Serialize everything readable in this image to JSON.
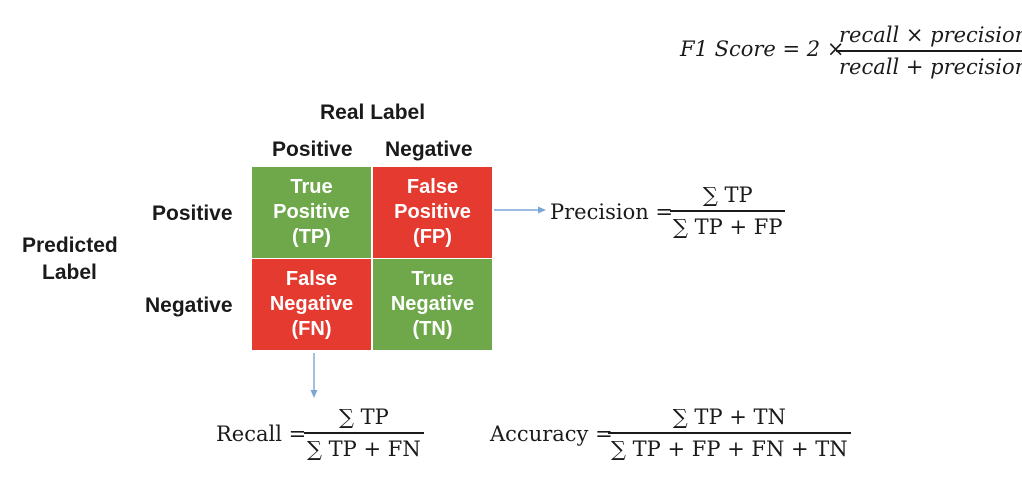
{
  "header": {
    "real_label": "Real Label",
    "predicted_label_line1": "Predicted",
    "predicted_label_line2": "Label",
    "col_positive": "Positive",
    "col_negative": "Negative",
    "row_positive": "Positive",
    "row_negative": "Negative"
  },
  "matrix": {
    "tp": {
      "line1": "True",
      "line2": "Positive",
      "line3": "(TP)"
    },
    "fp": {
      "line1": "False",
      "line2": "Positive",
      "line3": "(FP)"
    },
    "fn": {
      "line1": "False",
      "line2": "Negative",
      "line3": "(FN)"
    },
    "tn": {
      "line1": "True",
      "line2": "Negative",
      "line3": "(TN)"
    }
  },
  "formulas": {
    "f1": {
      "lhs": "F1 Score = 2 ×",
      "numerator": "recall × precision",
      "denominator": "recall + precision"
    },
    "precision": {
      "lhs": "Precision =",
      "numerator": "∑ TP",
      "denominator": "∑ TP + FP"
    },
    "recall": {
      "lhs": "Recall =",
      "numerator": "∑ TP",
      "denominator": "∑ TP + FN"
    },
    "accuracy": {
      "lhs": "Accuracy =",
      "numerator": "∑ TP + TN",
      "denominator": "∑ TP + FP + FN + TN"
    }
  },
  "colors": {
    "true_cell": "#6ea84b",
    "false_cell": "#e53a30",
    "arrow": "#7aa6d6"
  }
}
